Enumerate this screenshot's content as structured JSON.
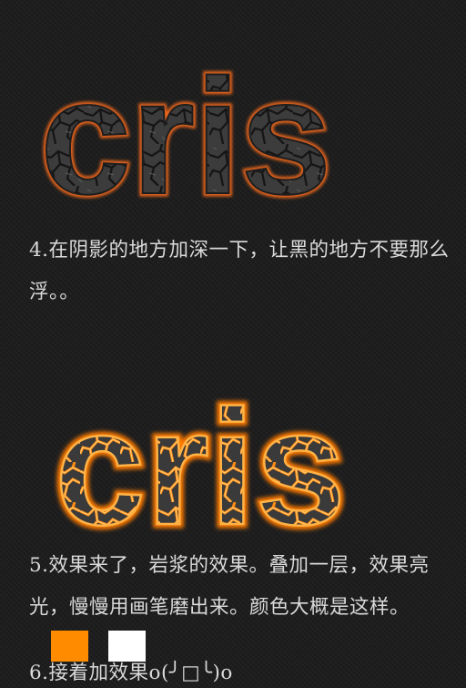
{
  "artwork": {
    "top_text": "cris",
    "bottom_text": "cris"
  },
  "steps": {
    "step4": "4.在阴影的地方加深一下，让黑的地方不要那么浮。。",
    "step5": "5.效果来了，岩浆的效果。叠加一层，效果亮光，慢慢用画笔磨出来。颜色大概是这样。",
    "step6": "6.接着加效果o(╯□╰)o"
  },
  "swatches": {
    "orange": "#ff8c00",
    "white": "#ffffff"
  },
  "colors": {
    "background": "#1b1b1b",
    "text": "#dadada",
    "rock": "#3a3a3a",
    "lava": "#ff7a00"
  }
}
